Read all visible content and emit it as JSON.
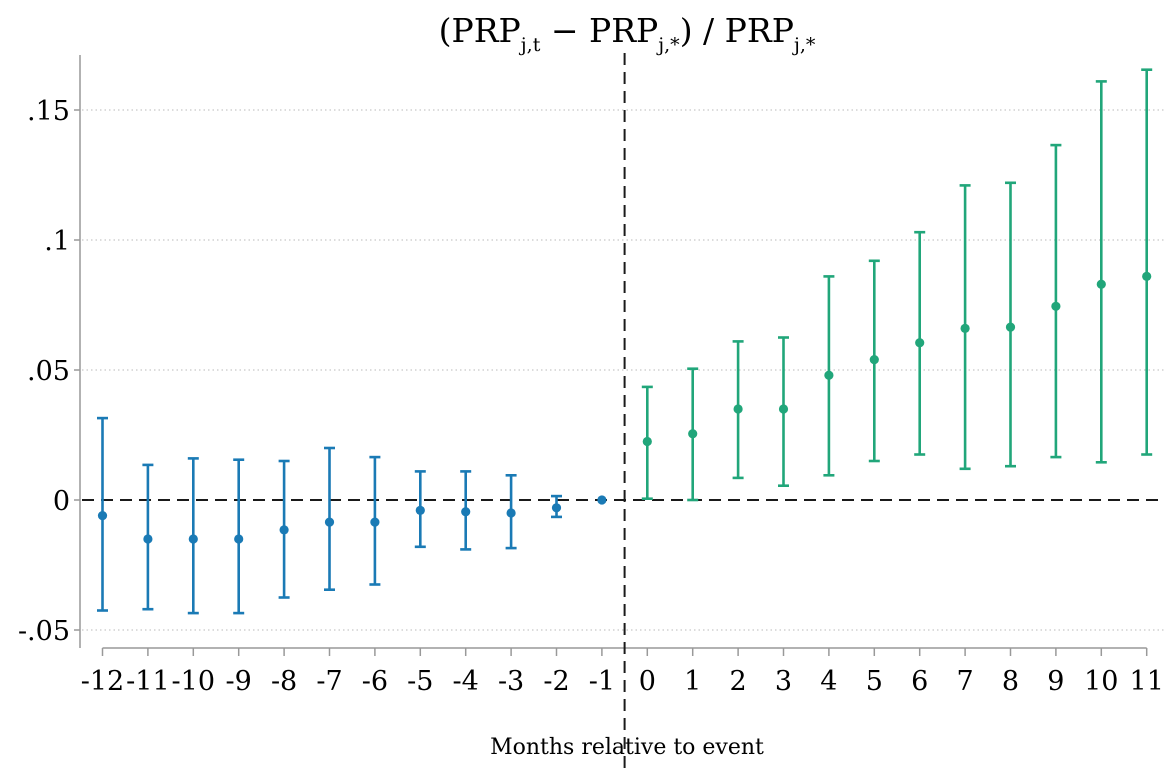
{
  "chart_data": {
    "type": "scatter",
    "title": {
      "open": "(",
      "prp1": "PRP",
      "sub1": "j,t",
      "minus": " − ",
      "prp2": "PRP",
      "sub2": "j,*",
      "close": ")",
      "slash": " / ",
      "prp3": "PRP",
      "sub3": "j,*"
    },
    "xlabel": "Months relative to event",
    "ylabel": "",
    "ylim": [
      -0.05,
      0.165
    ],
    "y_ticks": [
      {
        "value": -0.05,
        "label": "-.05"
      },
      {
        "value": 0,
        "label": "0"
      },
      {
        "value": 0.05,
        "label": ".05"
      },
      {
        "value": 0.1,
        "label": ".1"
      },
      {
        "value": 0.15,
        "label": ".15"
      }
    ],
    "x_ticks": [
      -12,
      -11,
      -10,
      -9,
      -8,
      -7,
      -6,
      -5,
      -4,
      -3,
      -2,
      -1,
      0,
      1,
      2,
      3,
      4,
      5,
      6,
      7,
      8,
      9,
      10,
      11
    ],
    "x_tick_labels": [
      "-12",
      "-11",
      "-10",
      "-9",
      "-8",
      "-7",
      "-6",
      "-5",
      "-4",
      "-3",
      "-2",
      "-1",
      "0",
      "1",
      "2",
      "3",
      "4",
      "5",
      "6",
      "7",
      "8",
      "9",
      "10",
      "11"
    ],
    "event_line_x": -0.5,
    "reference_line_y": 0,
    "grid": "horizontal-dotted",
    "colors": {
      "pre": "#1a7ab5",
      "post": "#21a67a",
      "reference": "#1a1a1a",
      "grid": "#c8c8c8",
      "axis": "#999999"
    },
    "series": [
      {
        "group": "pre",
        "x": [
          -12,
          -11,
          -10,
          -9,
          -8,
          -7,
          -6,
          -5,
          -4,
          -3,
          -2,
          -1
        ],
        "y": [
          -0.006,
          -0.015,
          -0.015,
          -0.015,
          -0.0115,
          -0.0085,
          -0.0085,
          -0.004,
          -0.0045,
          -0.005,
          -0.003,
          0.0
        ],
        "lower": [
          -0.0425,
          -0.042,
          -0.0435,
          -0.0435,
          -0.0375,
          -0.0345,
          -0.0325,
          -0.018,
          -0.019,
          -0.0185,
          -0.0065,
          0.0
        ],
        "upper": [
          0.0315,
          0.0135,
          0.016,
          0.0155,
          0.015,
          0.02,
          0.0165,
          0.011,
          0.011,
          0.0095,
          0.0015,
          0.0
        ]
      },
      {
        "group": "post",
        "x": [
          0,
          1,
          2,
          3,
          4,
          5,
          6,
          7,
          8,
          9,
          10,
          11
        ],
        "y": [
          0.0225,
          0.0255,
          0.035,
          0.035,
          0.048,
          0.054,
          0.0605,
          0.066,
          0.0665,
          0.0745,
          0.083,
          0.086
        ],
        "lower": [
          0.0005,
          0.0,
          0.0085,
          0.0055,
          0.0095,
          0.015,
          0.0175,
          0.012,
          0.013,
          0.0165,
          0.0145,
          0.0175
        ],
        "upper": [
          0.0435,
          0.0505,
          0.061,
          0.0625,
          0.086,
          0.092,
          0.103,
          0.121,
          0.122,
          0.1365,
          0.161,
          0.1655
        ]
      }
    ]
  }
}
